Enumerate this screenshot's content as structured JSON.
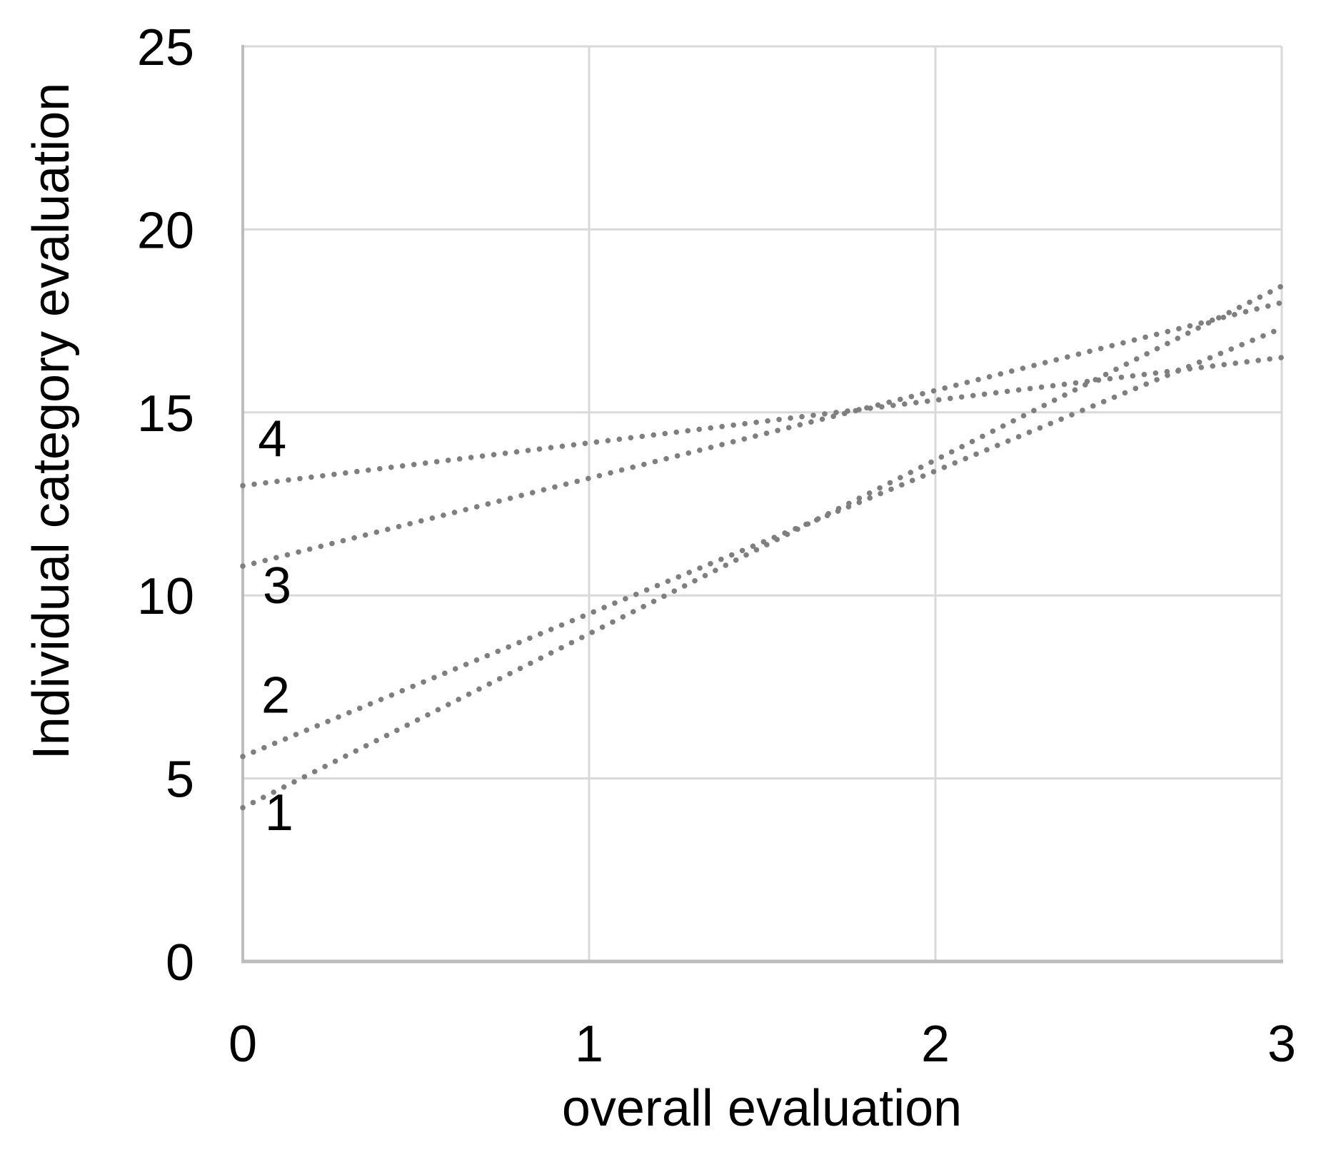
{
  "chart_data": {
    "type": "line",
    "title": "",
    "xlabel": "overall evaluation",
    "ylabel": "Individual category evaluation",
    "xlim": [
      0,
      3
    ],
    "ylim": [
      0,
      25
    ],
    "xticks": [
      0,
      1,
      2,
      3
    ],
    "yticks": [
      0,
      5,
      10,
      15,
      20,
      25
    ],
    "grid": true,
    "legend_position": "none",
    "line_style": "dotted",
    "marker": "none",
    "series": [
      {
        "name": "1",
        "x": [
          0,
          3
        ],
        "y": [
          4.2,
          18.45
        ],
        "label": "1",
        "label_pos": {
          "x": 0.105,
          "y": 4.1
        }
      },
      {
        "name": "2",
        "x": [
          0,
          3
        ],
        "y": [
          5.6,
          17.3
        ],
        "label": "2",
        "label_pos": {
          "x": 0.095,
          "y": 7.3
        }
      },
      {
        "name": "3",
        "x": [
          0,
          3
        ],
        "y": [
          10.8,
          18.0
        ],
        "label": "3",
        "label_pos": {
          "x": 0.099,
          "y": 10.3
        }
      },
      {
        "name": "4",
        "x": [
          0,
          3
        ],
        "y": [
          13.0,
          16.5
        ],
        "label": "4",
        "label_pos": {
          "x": 0.085,
          "y": 14.3
        }
      }
    ],
    "colors": {
      "line": "#7f7f7f",
      "grid": "#d9d9d9",
      "axis": "#bcbcbc",
      "text": "#000000",
      "background": "#ffffff"
    }
  }
}
